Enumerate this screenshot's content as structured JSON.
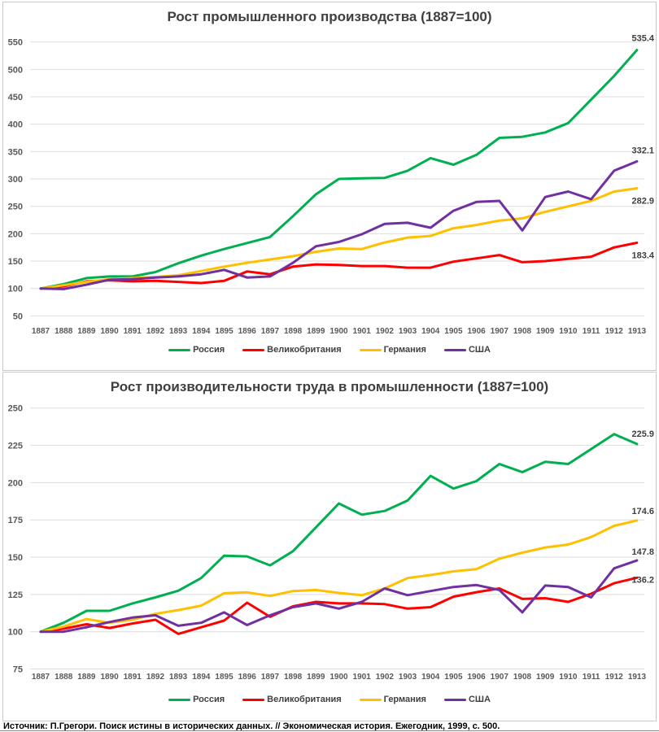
{
  "page": {
    "footer_source": "Источник: П.Грегори. Поиск истины в исторических данных. // Экономическая история. Ежегодник, 1999, с. 500."
  },
  "colors": {
    "russia": "#00B050",
    "uk": "#FF0000",
    "germany": "#FFC000",
    "usa": "#7030A0",
    "grid": "#dedede",
    "axis_text": "#595959",
    "title_text": "#3f3f3f",
    "panel_border": "#c9c9c9"
  },
  "chart_data": [
    {
      "type": "line",
      "title": "Рост промышленного производства (1887=100)",
      "x": [
        "1887",
        "1888",
        "1889",
        "1890",
        "1891",
        "1892",
        "1893",
        "1894",
        "1895",
        "1896",
        "1897",
        "1898",
        "1899",
        "1900",
        "1901",
        "1902",
        "1903",
        "1904",
        "1905",
        "1906",
        "1907",
        "1908",
        "1909",
        "1910",
        "1911",
        "1912",
        "1913"
      ],
      "ylim": [
        50,
        550
      ],
      "ytick_step": 50,
      "grid": true,
      "legend_position": "bottom",
      "series": [
        {
          "key": "russia",
          "name": "Россия",
          "color": "#00B050",
          "values": [
            100,
            108,
            119,
            122,
            122,
            130,
            146,
            160,
            172,
            183,
            194,
            232,
            272,
            300,
            301,
            302,
            315,
            338,
            326,
            344,
            375,
            377,
            385,
            402,
            445,
            488,
            535.4
          ],
          "end_label": "535.4"
        },
        {
          "key": "uk",
          "name": "Великобритания",
          "color": "#FF0000",
          "values": [
            100,
            104,
            113,
            115,
            113,
            114,
            112,
            110,
            114,
            131,
            126,
            140,
            144,
            143,
            141,
            141,
            138,
            138,
            149,
            155,
            161,
            148,
            150,
            154,
            158,
            175,
            183.4
          ],
          "end_label": "183.4"
        },
        {
          "key": "germany",
          "name": "Германия",
          "color": "#FFC000",
          "values": [
            100,
            106,
            112,
            117,
            119,
            121,
            124,
            132,
            140,
            147,
            153,
            159,
            167,
            173,
            172,
            184,
            193,
            196,
            210,
            216,
            224,
            228,
            240,
            250,
            260,
            277,
            282.9
          ],
          "end_label": "282.9"
        },
        {
          "key": "usa",
          "name": "США",
          "color": "#7030A0",
          "values": [
            100,
            99,
            107,
            116,
            117,
            120,
            122,
            126,
            134,
            120,
            122,
            147,
            177,
            185,
            199,
            218,
            220,
            211,
            242,
            258,
            260,
            206,
            267,
            277,
            263,
            315,
            332.1
          ],
          "end_label": "332.1"
        }
      ]
    },
    {
      "type": "line",
      "title": "Рост производительности труда в промышленности (1887=100)",
      "x": [
        "1887",
        "1888",
        "1889",
        "1890",
        "1891",
        "1892",
        "1893",
        "1894",
        "1895",
        "1896",
        "1897",
        "1898",
        "1899",
        "1900",
        "1901",
        "1902",
        "1903",
        "1904",
        "1905",
        "1906",
        "1907",
        "1908",
        "1909",
        "1910",
        "1911",
        "1912",
        "1913"
      ],
      "ylim": [
        75,
        250
      ],
      "ytick_step": 25,
      "grid": true,
      "legend_position": "bottom",
      "series": [
        {
          "key": "russia",
          "name": "Россия",
          "color": "#00B050",
          "values": [
            100,
            106,
            114,
            114,
            119,
            123,
            127.5,
            136,
            151,
            150.5,
            144.5,
            154,
            170,
            186,
            178.5,
            181,
            188,
            204.5,
            196,
            201,
            212.5,
            207,
            214,
            212.5,
            222.5,
            232.5,
            225.9
          ],
          "end_label": "225.9"
        },
        {
          "key": "uk",
          "name": "Великобритания",
          "color": "#FF0000",
          "values": [
            100,
            102,
            105,
            102.5,
            105.5,
            108,
            98.5,
            103,
            107.5,
            119.5,
            110,
            117,
            120,
            119,
            119,
            118.5,
            115.5,
            116.5,
            123.5,
            126.5,
            129,
            122,
            122.5,
            120,
            125.5,
            132.5,
            136.2
          ],
          "end_label": "136.2"
        },
        {
          "key": "germany",
          "name": "Германия",
          "color": "#FFC000",
          "values": [
            100,
            103.5,
            108.5,
            106,
            108,
            112,
            114.5,
            117.5,
            125.8,
            126.4,
            124,
            127.3,
            128,
            126,
            124.5,
            129,
            136,
            138,
            140.5,
            142,
            149,
            153,
            156.5,
            158.5,
            163.5,
            171,
            174.6
          ],
          "end_label": "174.6"
        },
        {
          "key": "usa",
          "name": "США",
          "color": "#7030A0",
          "values": [
            100,
            100,
            103,
            106.5,
            109.5,
            111,
            104,
            106,
            113,
            104.5,
            111,
            116.5,
            119,
            115.5,
            120,
            129,
            124.5,
            127.3,
            130,
            131.3,
            128,
            113,
            131,
            130,
            123,
            142.5,
            147.8
          ],
          "end_label": "147.8"
        }
      ]
    }
  ]
}
